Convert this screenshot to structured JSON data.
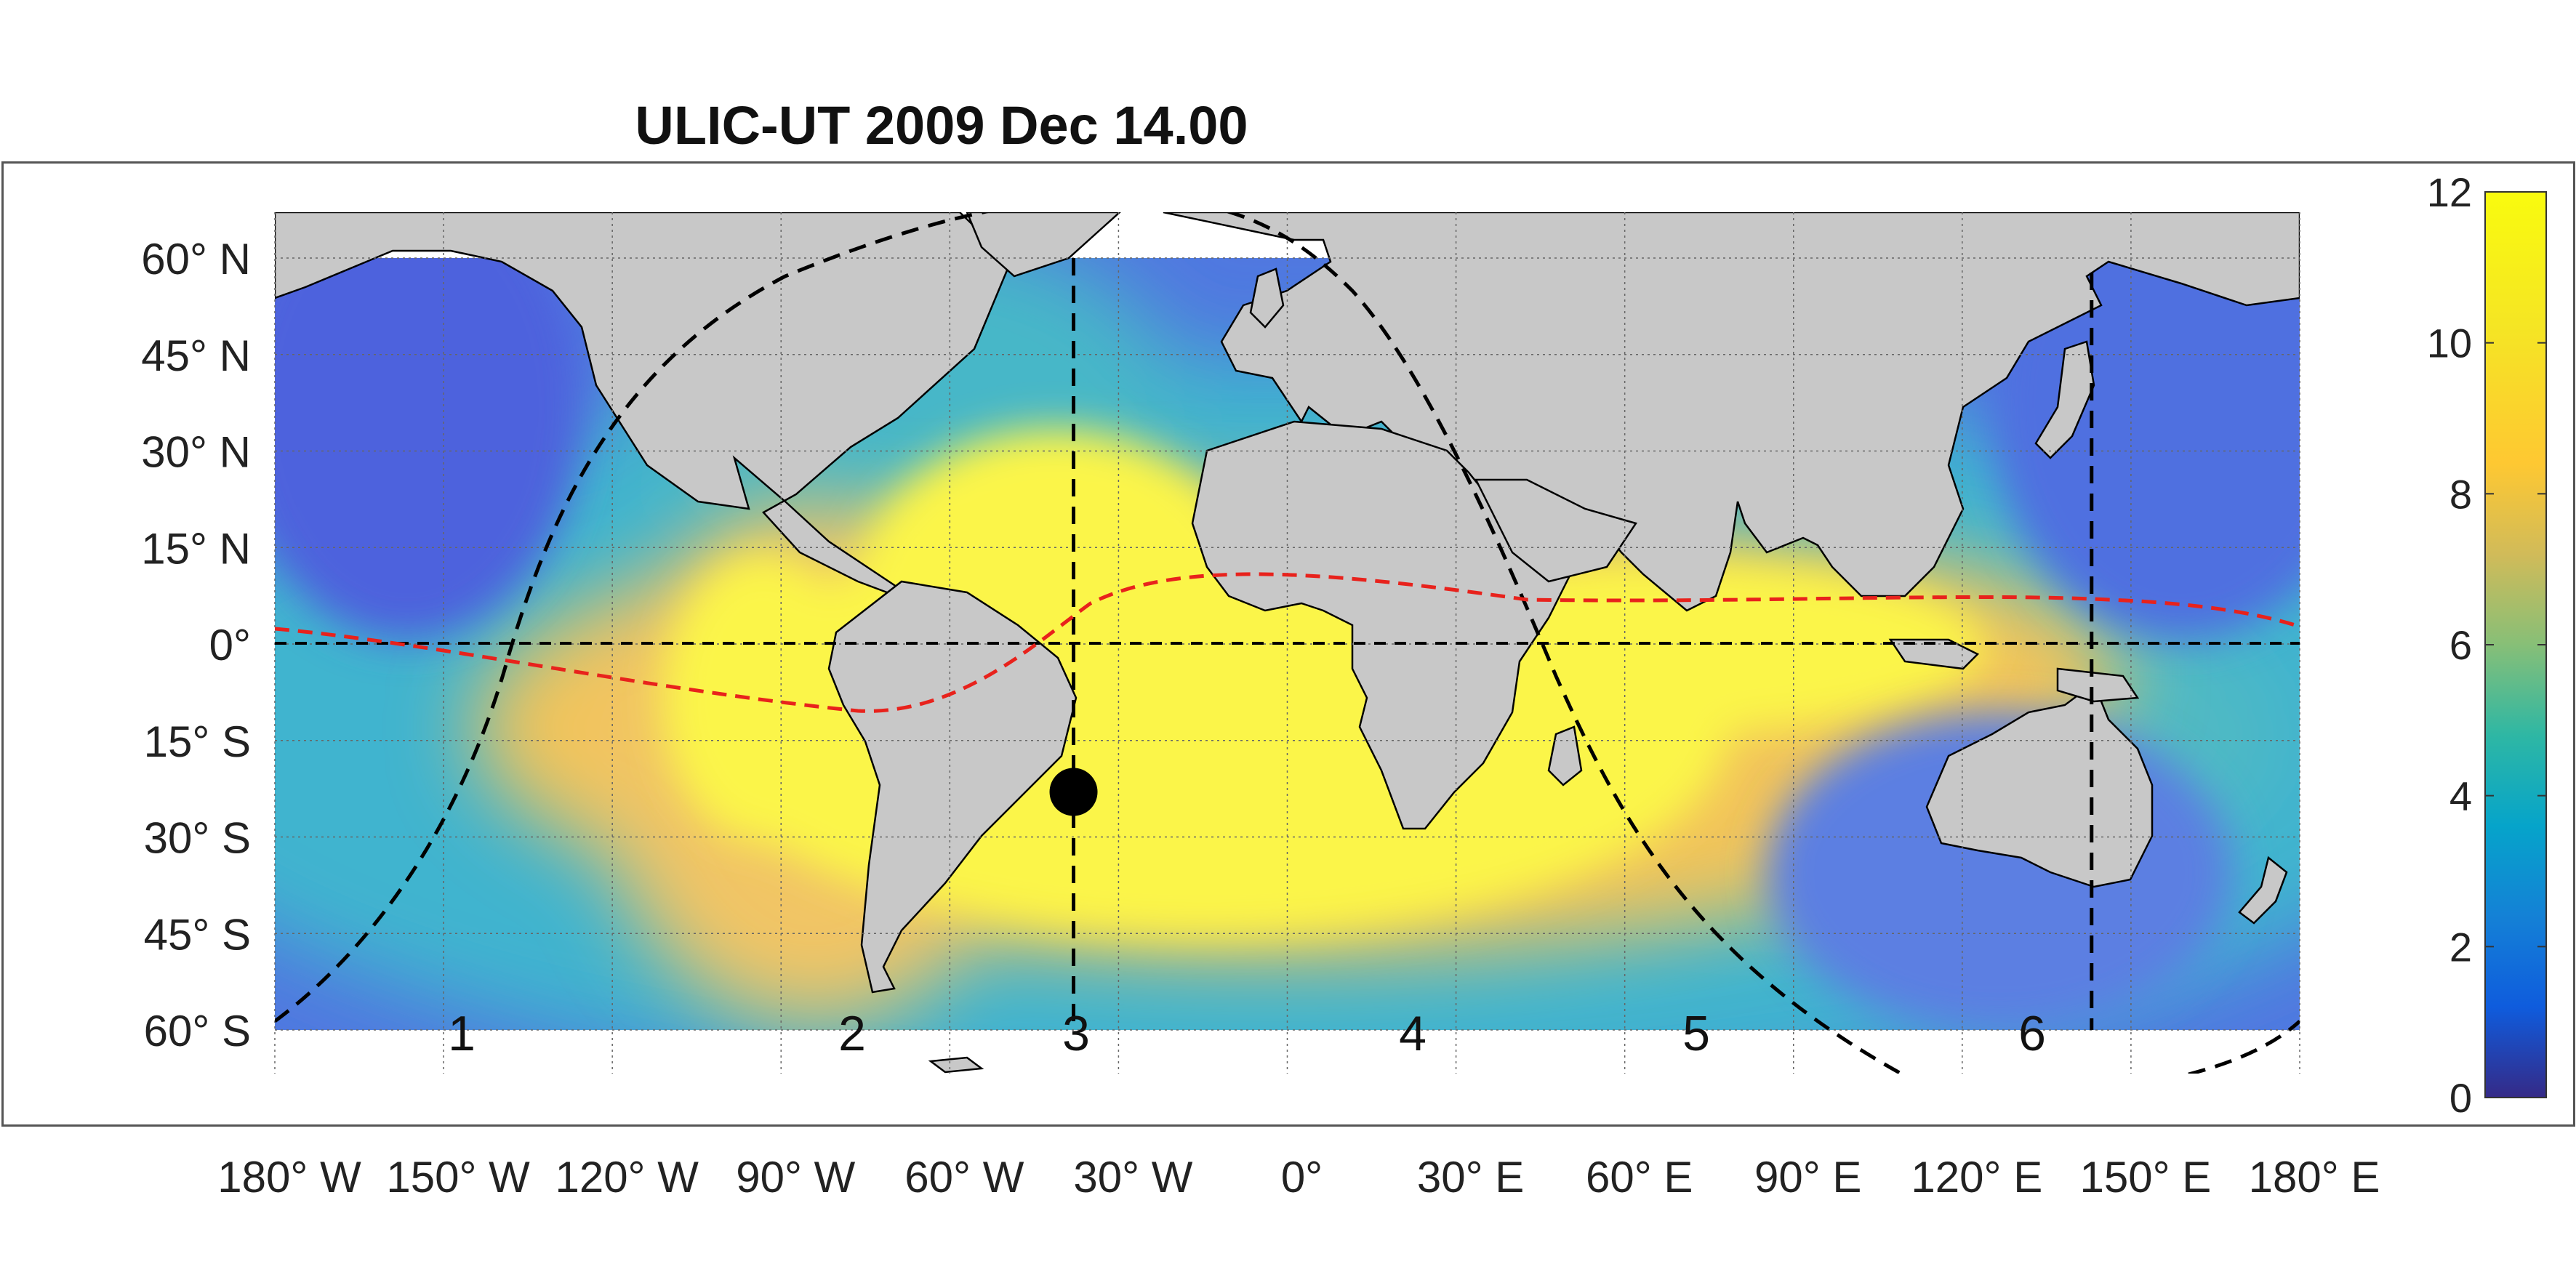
{
  "title": "ULIC-UT 2009 Dec 14.00",
  "map": {
    "lat_labels": [
      "60° N",
      "45° N",
      "30° N",
      "15° N",
      "0°",
      "15° S",
      "30° S",
      "45° S",
      "60° S"
    ],
    "lon_labels": [
      "180° W",
      "150° W",
      "120° W",
      "90° W",
      "60° W",
      "30° W",
      "0°",
      "30° E",
      "60° E",
      "90° E",
      "120° E",
      "150° E",
      "180° E"
    ],
    "region_labels": [
      "1",
      "2",
      "3",
      "4",
      "5",
      "6"
    ],
    "subsolar_point": {
      "lon": -38,
      "lat": -23
    },
    "meridian_lines_lon": [
      -38,
      143
    ],
    "colors": {
      "land": "#c8c8c8",
      "terminator": "#000000",
      "dip_equator": "#e8221c",
      "ocean_low": "#3b4bdc",
      "ocean_high": "#fbf54a"
    }
  },
  "colorbar": {
    "min": 0,
    "max": 12,
    "ticks": [
      "0",
      "2",
      "4",
      "6",
      "8",
      "10",
      "12"
    ],
    "colormap": "parula"
  }
}
